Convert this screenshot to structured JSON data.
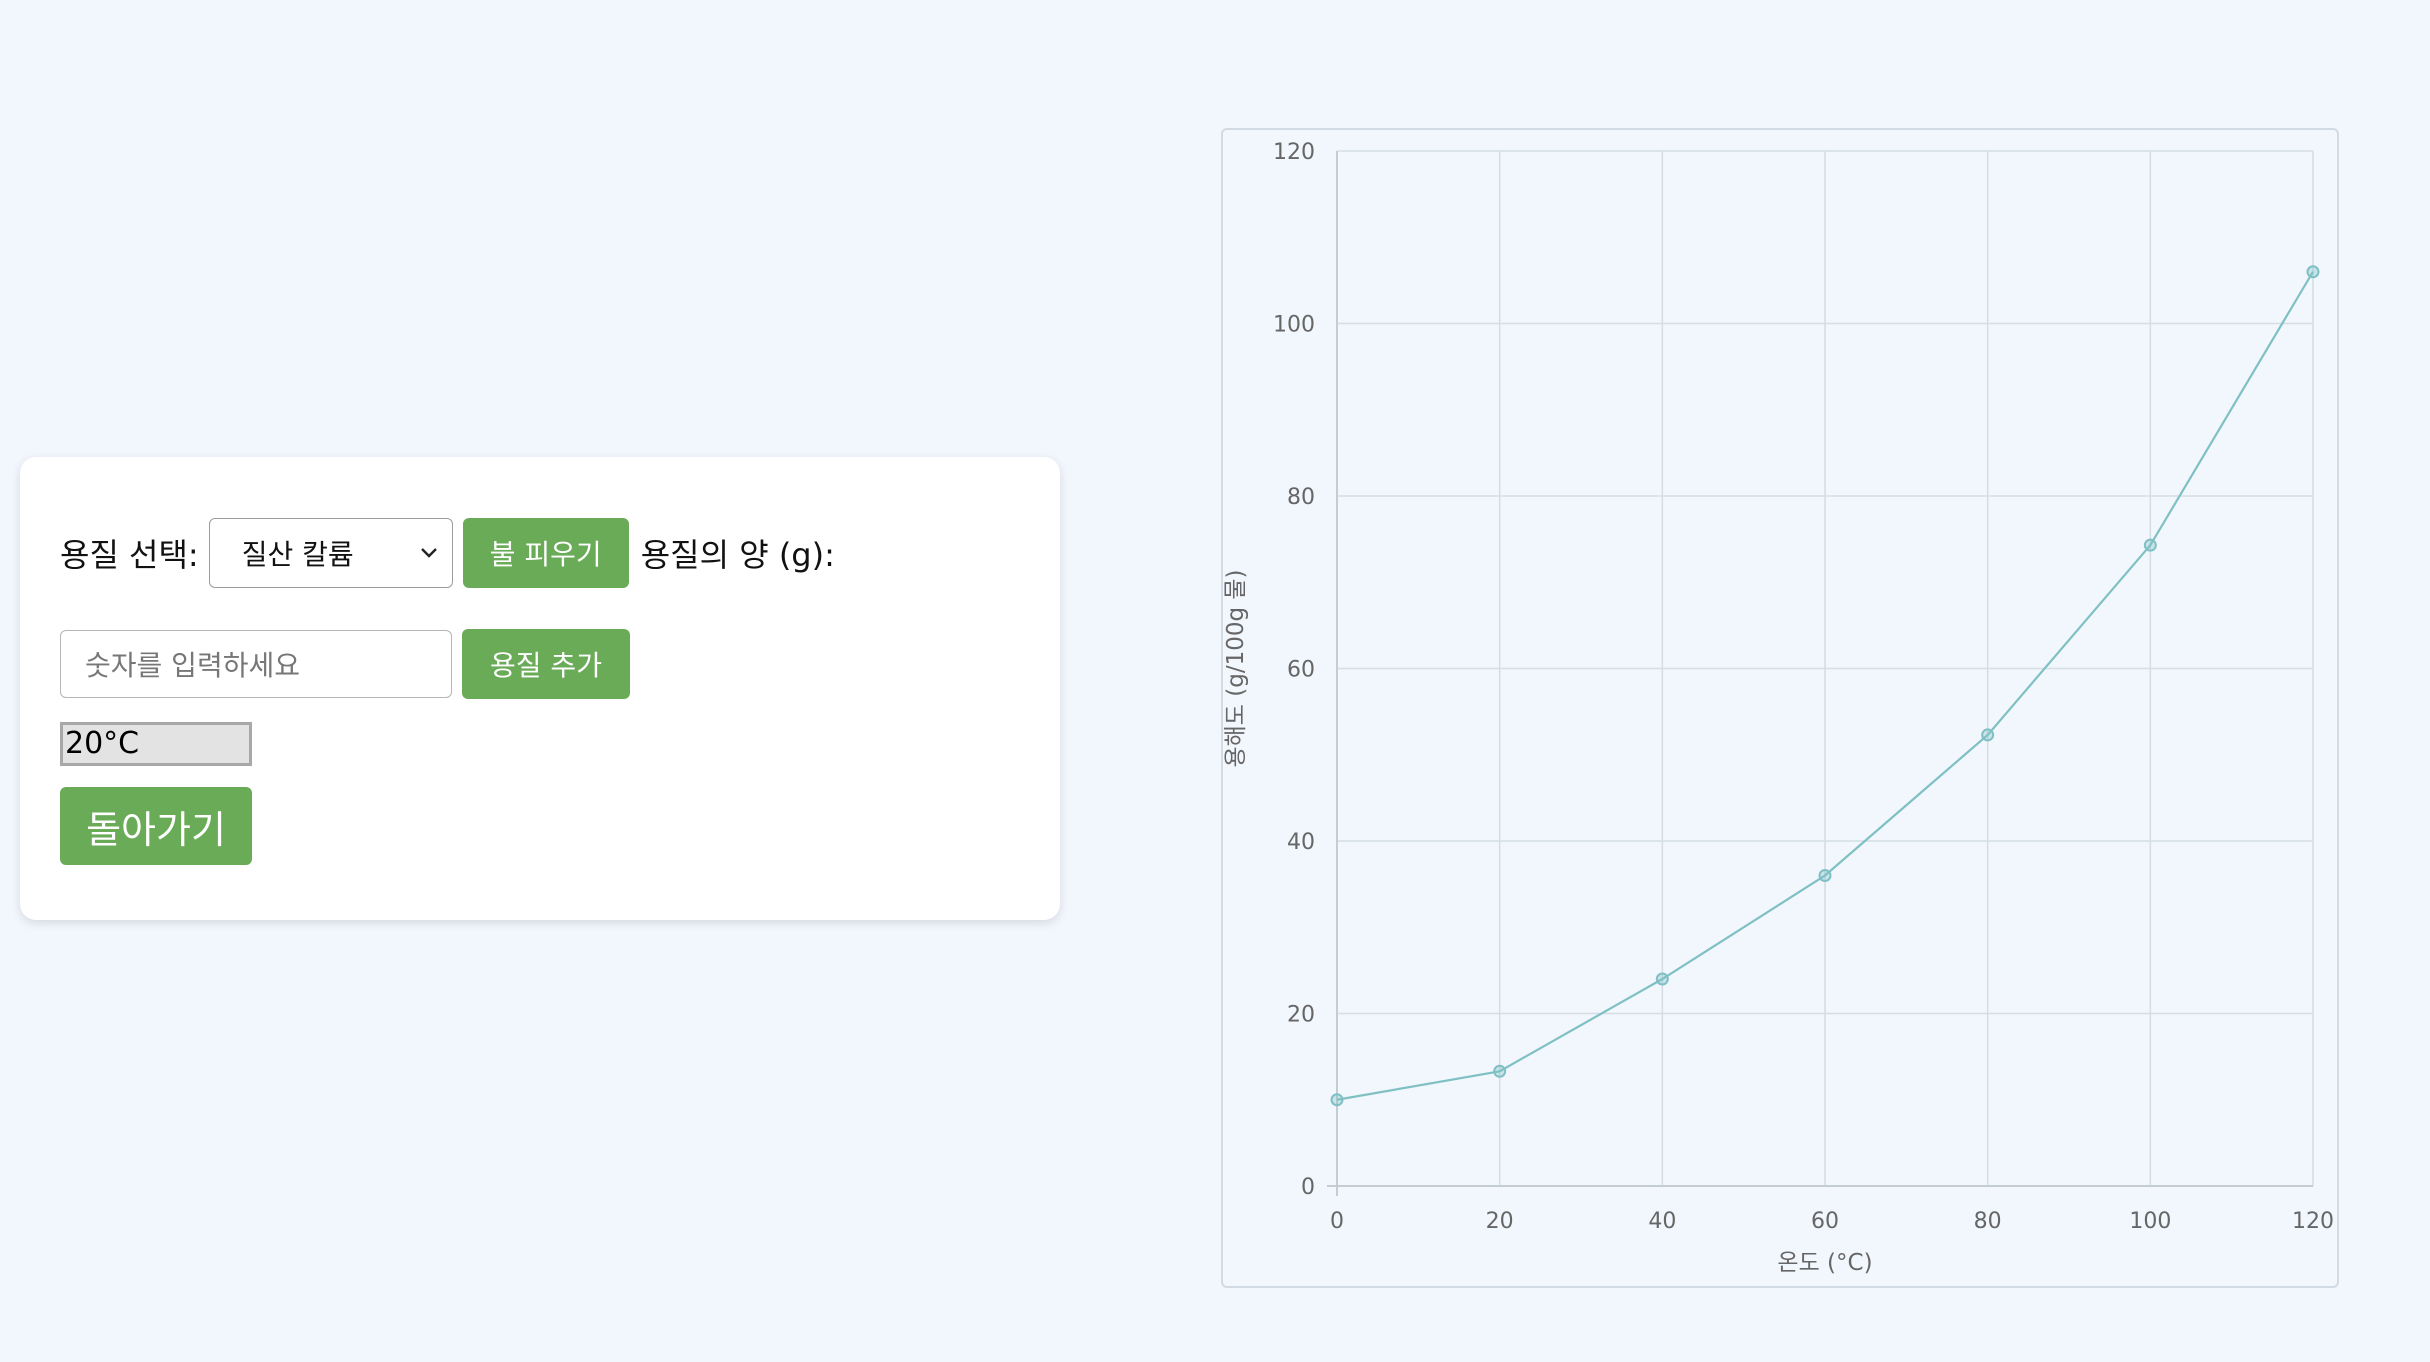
{
  "controls": {
    "solute_label": "용질 선택:",
    "solute_selected": "질산 칼륨",
    "fire_button": "불 피우기",
    "amount_label": "용질의 양 (g):",
    "amount_placeholder": "숫자를 입력하세요",
    "add_button": "용질 추가",
    "temperature_display": "20°C",
    "back_button": "돌아가기"
  },
  "colors": {
    "button_green": "#6aab58",
    "line_color": "#7fc0c4",
    "background": "#f2f7fd"
  },
  "icons": {
    "select_arrow": "chevron-down-icon"
  },
  "chart_data": {
    "type": "line",
    "x": [
      0,
      20,
      40,
      60,
      80,
      100,
      120
    ],
    "series": [
      {
        "values": [
          10,
          13.3,
          24,
          36,
          52.3,
          74.3,
          106
        ]
      }
    ],
    "xlabel": "온도 (°C)",
    "ylabel": "용해도 (g/100g 물)",
    "xlim": [
      0,
      120
    ],
    "ylim": [
      0,
      120
    ],
    "xticks": [
      0,
      20,
      40,
      60,
      80,
      100,
      120
    ],
    "yticks": [
      0,
      20,
      40,
      60,
      80,
      100,
      120
    ],
    "grid": true
  }
}
